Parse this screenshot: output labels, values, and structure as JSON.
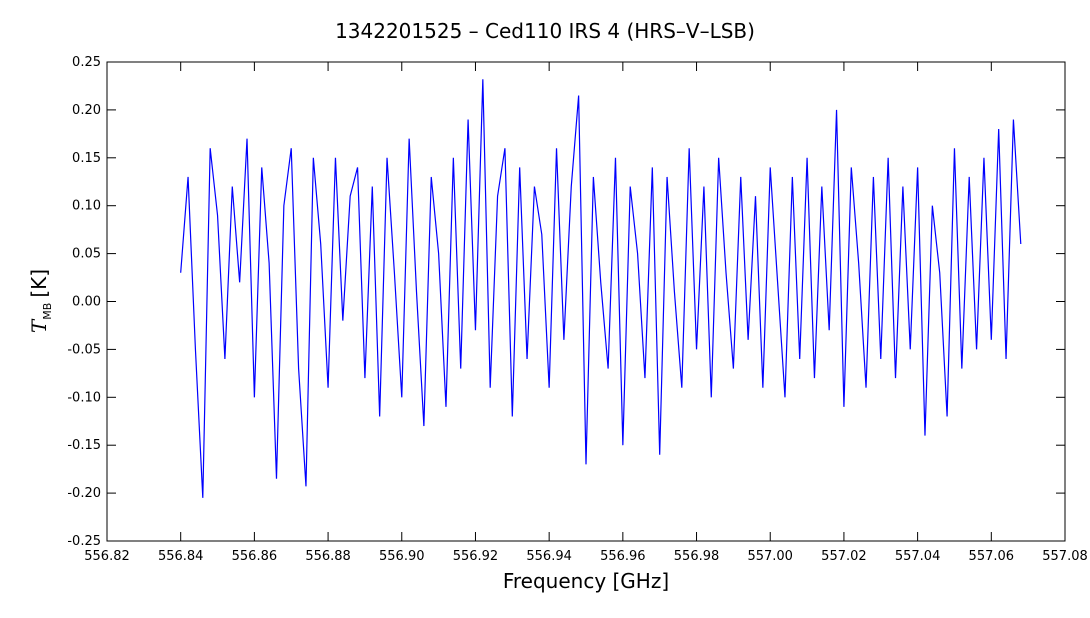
{
  "chart_data": {
    "type": "line",
    "title": "1342201525 – Ced110 IRS 4 (HRS–V–LSB)",
    "xlabel": "Frequency [GHz]",
    "ylabel": {
      "symbol": "T",
      "subscript": "MB",
      "unit": "[K]"
    },
    "color": "#0000ff",
    "xlim": [
      556.82,
      557.08
    ],
    "xticks": [
      556.82,
      556.84,
      556.86,
      556.88,
      {
        "value": 556.9,
        "label": "556.90"
      },
      556.92,
      556.94,
      556.96,
      556.98,
      {
        "value": 557,
        "label": "557.00"
      },
      557.02,
      557.04,
      557.06,
      557.08
    ],
    "ylim": [
      -0.25,
      0.25
    ],
    "yticks": [
      -0.25,
      {
        "value": -0.2,
        "label": "-0.20"
      },
      -0.15,
      {
        "value": -0.1,
        "label": "-0.10"
      },
      -0.05,
      {
        "value": 0,
        "label": "0.00"
      },
      0.05,
      {
        "value": 0.1,
        "label": "0.10"
      },
      0.15,
      {
        "value": 0.2,
        "label": "0.20"
      },
      0.25
    ],
    "x": [
      556.84,
      556.842,
      556.844,
      556.846,
      556.848,
      556.85,
      556.852,
      556.854,
      556.856,
      556.858,
      556.86,
      556.862,
      556.864,
      556.866,
      556.868,
      556.87,
      556.872,
      556.874,
      556.876,
      556.878,
      556.88,
      556.882,
      556.884,
      556.886,
      556.888,
      556.89,
      556.892,
      556.894,
      556.896,
      556.898,
      556.9,
      556.902,
      556.904,
      556.906,
      556.908,
      556.91,
      556.912,
      556.914,
      556.916,
      556.918,
      556.92,
      556.922,
      556.924,
      556.926,
      556.928,
      556.93,
      556.932,
      556.934,
      556.936,
      556.938,
      556.94,
      556.942,
      556.944,
      556.946,
      556.948,
      556.95,
      556.952,
      556.954,
      556.956,
      556.958,
      556.96,
      556.962,
      556.964,
      556.966,
      556.968,
      556.97,
      556.972,
      556.974,
      556.976,
      556.978,
      556.98,
      556.982,
      556.984,
      556.986,
      556.988,
      556.99,
      556.992,
      556.994,
      556.996,
      556.998,
      557,
      557.002,
      557.004,
      557.006,
      557.008,
      557.01,
      557.012,
      557.014,
      557.016,
      557.018,
      557.02,
      557.022,
      557.024,
      557.026,
      557.028,
      557.03,
      557.032,
      557.034,
      557.036,
      557.038,
      557.04,
      557.042,
      557.044,
      557.046,
      557.048,
      557.05,
      557.052,
      557.054,
      557.056,
      557.058,
      557.06,
      557.062,
      557.064,
      557.066,
      557.068
    ],
    "values": [
      0.03,
      0.13,
      -0.05,
      -0.205,
      0.16,
      0.09,
      -0.06,
      0.12,
      0.02,
      0.17,
      -0.1,
      0.14,
      0.04,
      -0.185,
      0.1,
      0.16,
      -0.07,
      -0.193,
      0.15,
      0.06,
      -0.09,
      0.15,
      -0.02,
      0.11,
      0.14,
      -0.08,
      0.12,
      -0.12,
      0.15,
      0.03,
      -0.1,
      0.17,
      0.01,
      -0.13,
      0.13,
      0.05,
      -0.11,
      0.15,
      -0.07,
      0.19,
      -0.03,
      0.232,
      -0.09,
      0.11,
      0.16,
      -0.12,
      0.14,
      -0.06,
      0.12,
      0.07,
      -0.09,
      0.16,
      -0.04,
      0.12,
      0.215,
      -0.17,
      0.13,
      0.02,
      -0.07,
      0.15,
      -0.15,
      0.12,
      0.05,
      -0.08,
      0.14,
      -0.16,
      0.13,
      0.01,
      -0.09,
      0.16,
      -0.05,
      0.12,
      -0.1,
      0.15,
      0.03,
      -0.07,
      0.13,
      -0.04,
      0.11,
      -0.09,
      0.14,
      0.02,
      -0.1,
      0.13,
      -0.06,
      0.15,
      -0.08,
      0.12,
      -0.03,
      0.2,
      -0.11,
      0.14,
      0.04,
      -0.09,
      0.13,
      -0.06,
      0.15,
      -0.08,
      0.12,
      -0.05,
      0.14,
      -0.14,
      0.1,
      0.03,
      -0.12,
      0.16,
      -0.07,
      0.13,
      -0.05,
      0.15,
      -0.04,
      0.18,
      -0.06,
      0.19,
      0.06
    ]
  }
}
